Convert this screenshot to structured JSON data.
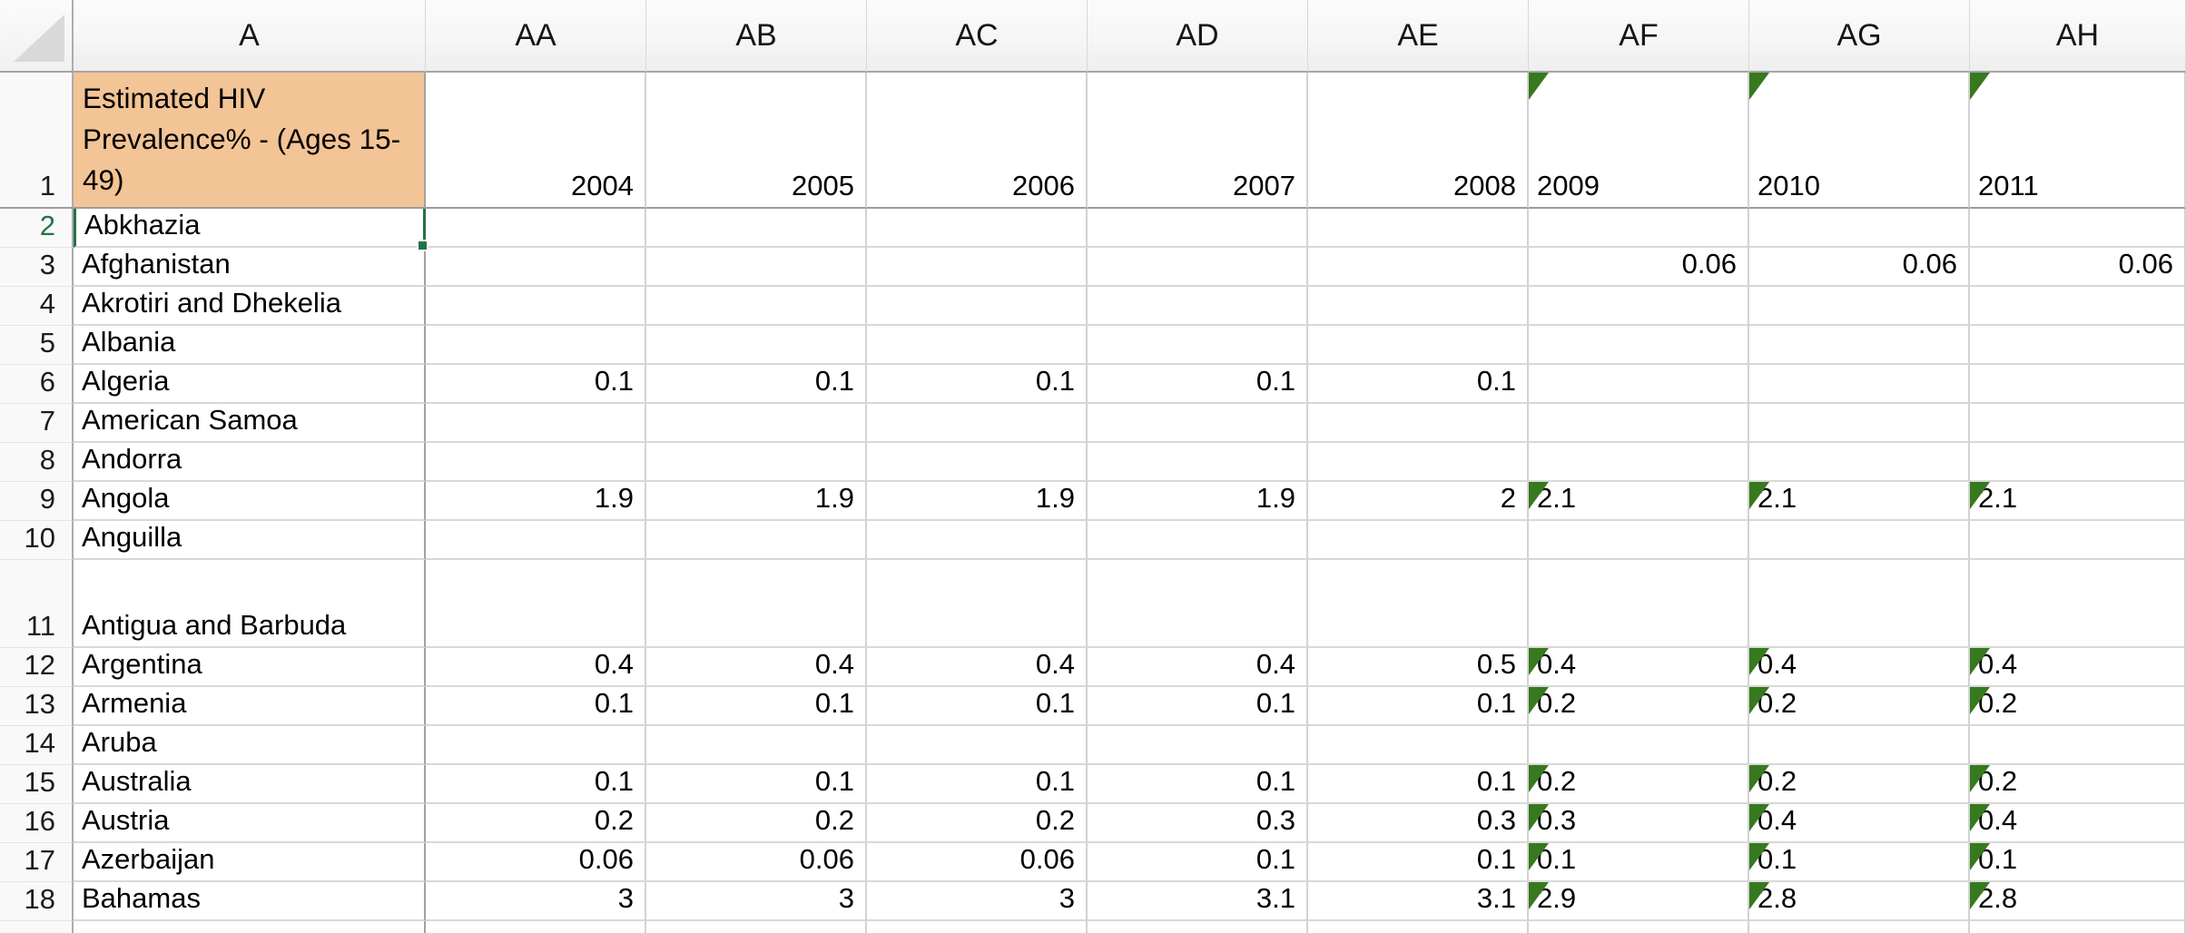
{
  "sheet": {
    "column_headers": [
      "A",
      "AA",
      "AB",
      "AC",
      "AD",
      "AE",
      "AF",
      "AG",
      "AH"
    ],
    "header_row": {
      "num": "1",
      "title": "Estimated HIV Prevalence% - (Ages 15-49)",
      "years": [
        {
          "label": "2004",
          "flagged": false
        },
        {
          "label": "2005",
          "flagged": false
        },
        {
          "label": "2006",
          "flagged": false
        },
        {
          "label": "2007",
          "flagged": false
        },
        {
          "label": "2008",
          "flagged": false
        },
        {
          "label": "2009",
          "flagged": true
        },
        {
          "label": "2010",
          "flagged": true
        },
        {
          "label": "2011",
          "flagged": true
        }
      ]
    },
    "rows": [
      {
        "num": "2",
        "name": "Abkhazia",
        "selected": true,
        "tall": false,
        "cells": [
          null,
          null,
          null,
          null,
          null,
          null,
          null,
          null
        ]
      },
      {
        "num": "3",
        "name": "Afghanistan",
        "selected": false,
        "tall": false,
        "cells": [
          null,
          null,
          null,
          null,
          null,
          {
            "v": "0.06",
            "f": false
          },
          {
            "v": "0.06",
            "f": false
          },
          {
            "v": "0.06",
            "f": false
          }
        ]
      },
      {
        "num": "4",
        "name": "Akrotiri and Dhekelia",
        "selected": false,
        "tall": false,
        "cells": [
          null,
          null,
          null,
          null,
          null,
          null,
          null,
          null
        ]
      },
      {
        "num": "5",
        "name": "Albania",
        "selected": false,
        "tall": false,
        "cells": [
          null,
          null,
          null,
          null,
          null,
          null,
          null,
          null
        ]
      },
      {
        "num": "6",
        "name": "Algeria",
        "selected": false,
        "tall": false,
        "cells": [
          {
            "v": "0.1",
            "f": false
          },
          {
            "v": "0.1",
            "f": false
          },
          {
            "v": "0.1",
            "f": false
          },
          {
            "v": "0.1",
            "f": false
          },
          {
            "v": "0.1",
            "f": false
          },
          null,
          null,
          null
        ]
      },
      {
        "num": "7",
        "name": "American Samoa",
        "selected": false,
        "tall": false,
        "cells": [
          null,
          null,
          null,
          null,
          null,
          null,
          null,
          null
        ]
      },
      {
        "num": "8",
        "name": "Andorra",
        "selected": false,
        "tall": false,
        "cells": [
          null,
          null,
          null,
          null,
          null,
          null,
          null,
          null
        ]
      },
      {
        "num": "9",
        "name": "Angola",
        "selected": false,
        "tall": false,
        "cells": [
          {
            "v": "1.9",
            "f": false
          },
          {
            "v": "1.9",
            "f": false
          },
          {
            "v": "1.9",
            "f": false
          },
          {
            "v": "1.9",
            "f": false
          },
          {
            "v": "2",
            "f": false
          },
          {
            "v": "2.1",
            "f": true
          },
          {
            "v": "2.1",
            "f": true
          },
          {
            "v": "2.1",
            "f": true
          }
        ]
      },
      {
        "num": "10",
        "name": "Anguilla",
        "selected": false,
        "tall": false,
        "cells": [
          null,
          null,
          null,
          null,
          null,
          null,
          null,
          null
        ]
      },
      {
        "num": "11",
        "name": "Antigua and Barbuda",
        "selected": false,
        "tall": true,
        "cells": [
          null,
          null,
          null,
          null,
          null,
          null,
          null,
          null
        ]
      },
      {
        "num": "12",
        "name": "Argentina",
        "selected": false,
        "tall": false,
        "cells": [
          {
            "v": "0.4",
            "f": false
          },
          {
            "v": "0.4",
            "f": false
          },
          {
            "v": "0.4",
            "f": false
          },
          {
            "v": "0.4",
            "f": false
          },
          {
            "v": "0.5",
            "f": false
          },
          {
            "v": "0.4",
            "f": true
          },
          {
            "v": "0.4",
            "f": true
          },
          {
            "v": "0.4",
            "f": true
          }
        ]
      },
      {
        "num": "13",
        "name": "Armenia",
        "selected": false,
        "tall": false,
        "cells": [
          {
            "v": "0.1",
            "f": false
          },
          {
            "v": "0.1",
            "f": false
          },
          {
            "v": "0.1",
            "f": false
          },
          {
            "v": "0.1",
            "f": false
          },
          {
            "v": "0.1",
            "f": false
          },
          {
            "v": "0.2",
            "f": true
          },
          {
            "v": "0.2",
            "f": true
          },
          {
            "v": "0.2",
            "f": true
          }
        ]
      },
      {
        "num": "14",
        "name": "Aruba",
        "selected": false,
        "tall": false,
        "cells": [
          null,
          null,
          null,
          null,
          null,
          null,
          null,
          null
        ]
      },
      {
        "num": "15",
        "name": "Australia",
        "selected": false,
        "tall": false,
        "cells": [
          {
            "v": "0.1",
            "f": false
          },
          {
            "v": "0.1",
            "f": false
          },
          {
            "v": "0.1",
            "f": false
          },
          {
            "v": "0.1",
            "f": false
          },
          {
            "v": "0.1",
            "f": false
          },
          {
            "v": "0.2",
            "f": true
          },
          {
            "v": "0.2",
            "f": true
          },
          {
            "v": "0.2",
            "f": true
          }
        ]
      },
      {
        "num": "16",
        "name": "Austria",
        "selected": false,
        "tall": false,
        "cells": [
          {
            "v": "0.2",
            "f": false
          },
          {
            "v": "0.2",
            "f": false
          },
          {
            "v": "0.2",
            "f": false
          },
          {
            "v": "0.3",
            "f": false
          },
          {
            "v": "0.3",
            "f": false
          },
          {
            "v": "0.3",
            "f": true
          },
          {
            "v": "0.4",
            "f": true
          },
          {
            "v": "0.4",
            "f": true
          }
        ]
      },
      {
        "num": "17",
        "name": "Azerbaijan",
        "selected": false,
        "tall": false,
        "cells": [
          {
            "v": "0.06",
            "f": false
          },
          {
            "v": "0.06",
            "f": false
          },
          {
            "v": "0.06",
            "f": false
          },
          {
            "v": "0.1",
            "f": false
          },
          {
            "v": "0.1",
            "f": false
          },
          {
            "v": "0.1",
            "f": true
          },
          {
            "v": "0.1",
            "f": true
          },
          {
            "v": "0.1",
            "f": true
          }
        ]
      },
      {
        "num": "18",
        "name": "Bahamas",
        "selected": false,
        "tall": false,
        "cells": [
          {
            "v": "3",
            "f": false
          },
          {
            "v": "3",
            "f": false
          },
          {
            "v": "3",
            "f": false
          },
          {
            "v": "3.1",
            "f": false
          },
          {
            "v": "3.1",
            "f": false
          },
          {
            "v": "2.9",
            "f": true
          },
          {
            "v": "2.8",
            "f": true
          },
          {
            "v": "2.8",
            "f": true
          }
        ]
      }
    ],
    "colors": {
      "title_fill": "#f3c495",
      "text_flag_green": "#37791e",
      "selection_green": "#217346"
    }
  }
}
